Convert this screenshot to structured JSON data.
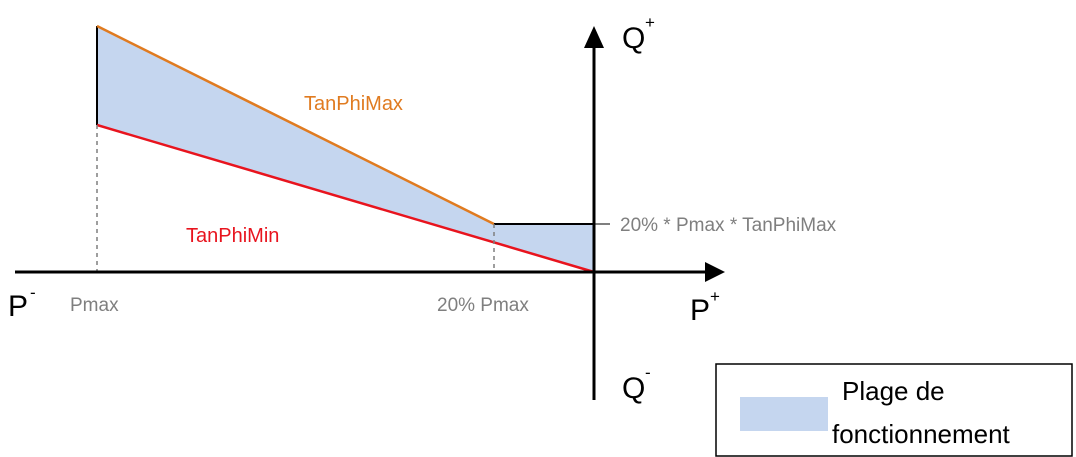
{
  "axes": {
    "p_neg": "P",
    "p_neg_sup": "-",
    "p_pos": "P",
    "p_pos_sup": "+",
    "q_pos": "Q",
    "q_pos_sup": "+",
    "q_neg": "Q",
    "q_neg_sup": "-"
  },
  "markers": {
    "pmax": "Pmax",
    "pmax20": "20% Pmax",
    "q_level": "20% * Pmax * TanPhiMax"
  },
  "curves": {
    "tanphimax": {
      "label": "TanPhiMax",
      "color": "#e07b20"
    },
    "tanphimin": {
      "label": "TanPhiMin",
      "color": "#e8141e"
    }
  },
  "region": {
    "fill": "#c5d6ef"
  },
  "legend": {
    "line1": "Plage de",
    "line2": "fonctionnement"
  }
}
